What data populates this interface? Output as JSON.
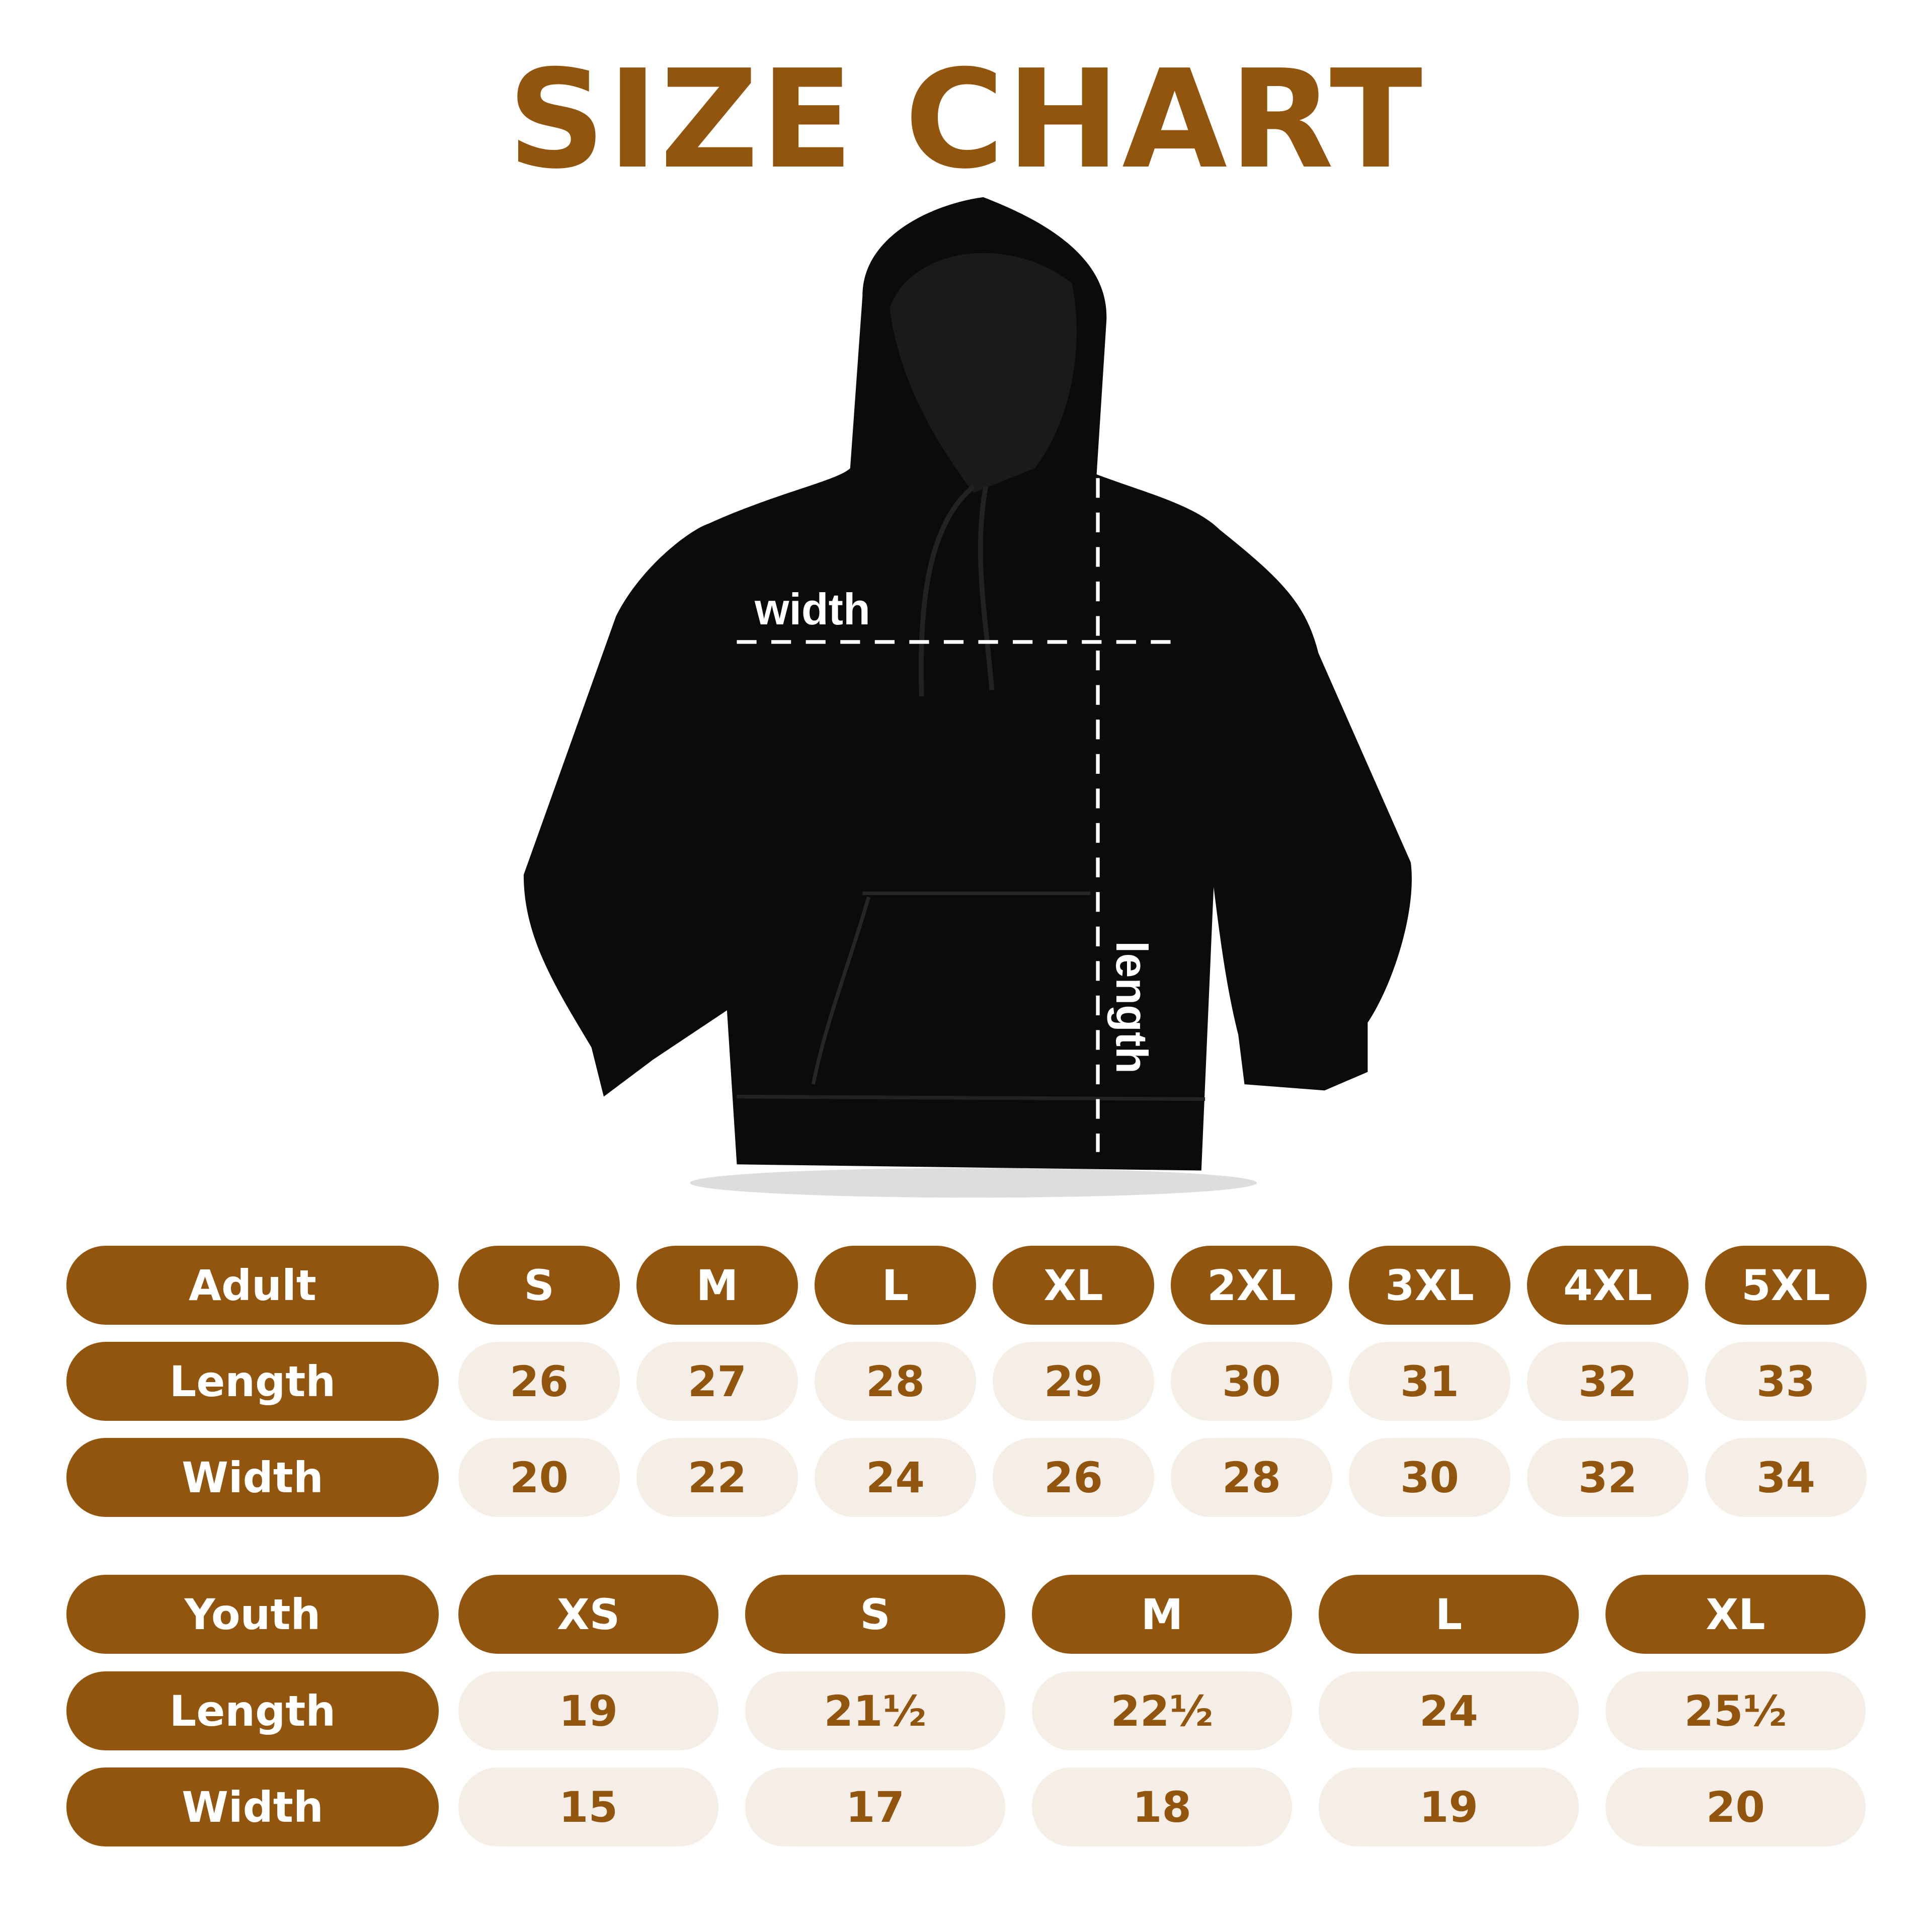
{
  "title": "SIZE CHART",
  "diagram": {
    "width_label": "width",
    "length_label": "length",
    "garment_color": "#0b0b0b"
  },
  "colors": {
    "accent": "#92550D",
    "cell_bg": "#F4EEE6",
    "text_on_accent": "#FFFFFF"
  },
  "adult": {
    "header": "Adult",
    "sizes": [
      "S",
      "M",
      "L",
      "XL",
      "2XL",
      "3XL",
      "4XL",
      "5XL"
    ],
    "rows": [
      {
        "label": "Length",
        "values": [
          "26",
          "27",
          "28",
          "29",
          "30",
          "31",
          "32",
          "33"
        ]
      },
      {
        "label": "Width",
        "values": [
          "20",
          "22",
          "24",
          "26",
          "28",
          "30",
          "32",
          "34"
        ]
      }
    ]
  },
  "youth": {
    "header": "Youth",
    "sizes": [
      "XS",
      "S",
      "M",
      "L",
      "XL"
    ],
    "rows": [
      {
        "label": "Length",
        "values": [
          "19",
          "21½",
          "22½",
          "24",
          "25½"
        ]
      },
      {
        "label": "Width",
        "values": [
          "15",
          "17",
          "18",
          "19",
          "20"
        ]
      }
    ]
  }
}
